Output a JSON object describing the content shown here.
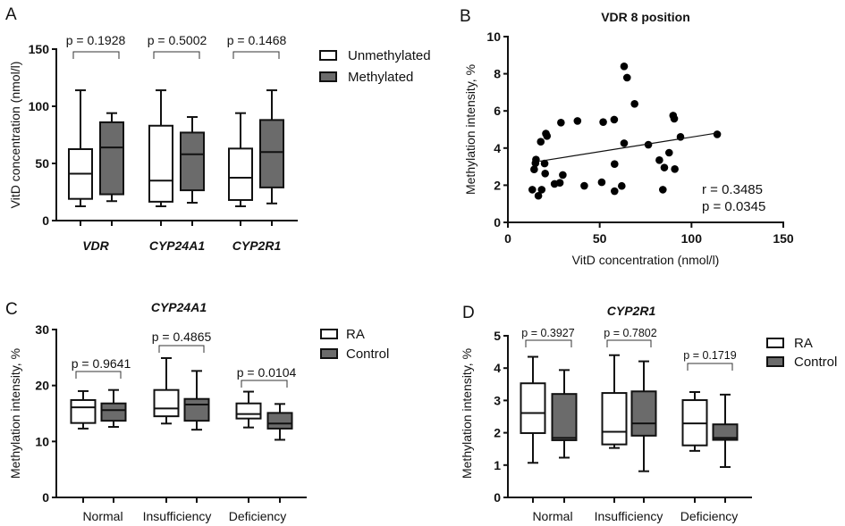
{
  "colors": {
    "filled_box": "#6b6b6b",
    "open_box": "#ffffff",
    "stroke": "#111111",
    "point": "#000000"
  },
  "chart_data": [
    {
      "panel": "A",
      "type": "box",
      "title": "",
      "xlabel": "",
      "ylabel": "VitD concentration (nmol/l)",
      "ylim": [
        0,
        150
      ],
      "yticks": [
        0,
        50,
        100,
        150
      ],
      "categories": [
        "VDR",
        "CYP24A1",
        "CYP2R1"
      ],
      "legend": {
        "position": "right",
        "entries": [
          {
            "label": "Unmethylated",
            "fill": "open"
          },
          {
            "label": "Methylated",
            "fill": "filled"
          }
        ]
      },
      "series": [
        {
          "name": "Unmethylated",
          "fill": "open",
          "boxes": [
            {
              "min": 12.5,
              "q1": 19,
              "median": 41,
              "q3": 62.5,
              "max": 114
            },
            {
              "min": 12.5,
              "q1": 16.5,
              "median": 35,
              "q3": 83,
              "max": 114
            },
            {
              "min": 12.5,
              "q1": 18,
              "median": 37.5,
              "q3": 63,
              "max": 94
            }
          ]
        },
        {
          "name": "Methylated",
          "fill": "filled",
          "boxes": [
            {
              "min": 17,
              "q1": 23,
              "median": 64,
              "q3": 86,
              "max": 94
            },
            {
              "min": 15.6,
              "q1": 26.5,
              "median": 58,
              "q3": 77,
              "max": 90.6
            },
            {
              "min": 15,
              "q1": 29,
              "median": 60,
              "q3": 88,
              "max": 114
            }
          ]
        }
      ],
      "annotations": [
        "p = 0.1928",
        "p = 0.5002",
        "p = 0.1468"
      ]
    },
    {
      "panel": "B",
      "type": "scatter",
      "title": "VDR 8 position",
      "xlabel": "VitD concentration (nmol/l)",
      "ylabel": "Methylation intensity, %",
      "xlim": [
        0,
        150
      ],
      "ylim": [
        0,
        10
      ],
      "xticks": [
        0,
        50,
        100,
        150
      ],
      "yticks": [
        0,
        2,
        4,
        6,
        8,
        10
      ],
      "points": [
        [
          13.3,
          1.76
        ],
        [
          14.3,
          2.85
        ],
        [
          15.3,
          3.38
        ],
        [
          15.0,
          3.19
        ],
        [
          16.6,
          1.43
        ],
        [
          18.4,
          1.76
        ],
        [
          17.9,
          4.34
        ],
        [
          20.0,
          3.17
        ],
        [
          20.3,
          2.63
        ],
        [
          20.7,
          4.78
        ],
        [
          21.3,
          4.65
        ],
        [
          25.4,
          2.07
        ],
        [
          28.3,
          2.13
        ],
        [
          28.9,
          5.37
        ],
        [
          29.9,
          2.55
        ],
        [
          37.9,
          5.46
        ],
        [
          41.6,
          1.97
        ],
        [
          51.1,
          2.16
        ],
        [
          51.9,
          5.4
        ],
        [
          57.9,
          5.53
        ],
        [
          58.1,
          3.14
        ],
        [
          58.1,
          1.68
        ],
        [
          62.0,
          1.96
        ],
        [
          63.3,
          8.4
        ],
        [
          63.3,
          4.26
        ],
        [
          64.9,
          7.79
        ],
        [
          69.0,
          6.38
        ],
        [
          76.5,
          4.18
        ],
        [
          82.5,
          3.35
        ],
        [
          84.4,
          1.76
        ],
        [
          85.2,
          2.95
        ],
        [
          87.8,
          3.75
        ],
        [
          90.0,
          5.75
        ],
        [
          90.6,
          5.58
        ],
        [
          90.9,
          2.87
        ],
        [
          94.0,
          4.6
        ],
        [
          114.0,
          4.74
        ]
      ],
      "regression": {
        "x": [
          17.2,
          114.0
        ],
        "y": [
          3.29,
          4.81
        ]
      },
      "annotations": [
        "r = 0.3485",
        "p = 0.0345"
      ]
    },
    {
      "panel": "C",
      "type": "box",
      "title": "CYP24A1",
      "xlabel": "",
      "ylabel": "Methylation intensity, %",
      "ylim": [
        0,
        30
      ],
      "yticks": [
        0,
        10,
        20,
        30
      ],
      "categories": [
        "Normal",
        "Insufficiency",
        "Deficiency"
      ],
      "legend": {
        "position": "right",
        "entries": [
          {
            "label": "RA",
            "fill": "open"
          },
          {
            "label": "Control",
            "fill": "filled"
          }
        ]
      },
      "series": [
        {
          "name": "RA",
          "fill": "open",
          "boxes": [
            {
              "min": 12.3,
              "q1": 13.3,
              "median": 16.1,
              "q3": 17.4,
              "max": 19.0
            },
            {
              "min": 13.2,
              "q1": 14.5,
              "median": 15.9,
              "q3": 19.2,
              "max": 24.9
            },
            {
              "min": 12.5,
              "q1": 14.1,
              "median": 14.9,
              "q3": 16.8,
              "max": 18.9
            }
          ]
        },
        {
          "name": "Control",
          "fill": "filled",
          "boxes": [
            {
              "min": 12.6,
              "q1": 13.7,
              "median": 15.6,
              "q3": 16.8,
              "max": 19.2
            },
            {
              "min": 12.1,
              "q1": 13.7,
              "median": 16.6,
              "q3": 17.6,
              "max": 22.6
            },
            {
              "min": 10.3,
              "q1": 12.3,
              "median": 13.2,
              "q3": 15.1,
              "max": 16.7
            }
          ]
        }
      ],
      "annotations": [
        "p = 0.9641",
        "p = 0.4865",
        "p = 0.0104"
      ]
    },
    {
      "panel": "D",
      "type": "box",
      "title": "CYP2R1",
      "xlabel": "",
      "ylabel": "Methylation intensity, %",
      "ylim": [
        0,
        5
      ],
      "yticks": [
        0,
        1,
        2,
        3,
        4,
        5
      ],
      "categories": [
        "Normal",
        "Insufficiency",
        "Deficiency"
      ],
      "legend": {
        "position": "right",
        "entries": [
          {
            "label": "RA",
            "fill": "open"
          },
          {
            "label": "Control",
            "fill": "filled"
          }
        ]
      },
      "series": [
        {
          "name": "RA",
          "fill": "open",
          "boxes": [
            {
              "min": 1.07,
              "q1": 1.99,
              "median": 2.61,
              "q3": 3.53,
              "max": 4.35
            },
            {
              "min": 1.53,
              "q1": 1.64,
              "median": 2.03,
              "q3": 3.23,
              "max": 4.4
            },
            {
              "min": 1.44,
              "q1": 1.61,
              "median": 2.29,
              "q3": 3.01,
              "max": 3.26
            }
          ]
        },
        {
          "name": "Control",
          "fill": "filled",
          "boxes": [
            {
              "min": 1.23,
              "q1": 1.77,
              "median": 1.84,
              "q3": 3.2,
              "max": 3.94
            },
            {
              "min": 0.81,
              "q1": 1.91,
              "median": 2.29,
              "q3": 3.28,
              "max": 4.21
            },
            {
              "min": 0.94,
              "q1": 1.78,
              "median": 1.84,
              "q3": 2.26,
              "max": 3.18
            }
          ]
        }
      ],
      "annotations": [
        "p = 0.3927",
        "p = 0.7802",
        "p = 0.1719"
      ]
    }
  ],
  "panel_letters": [
    "A",
    "B",
    "C",
    "D"
  ]
}
